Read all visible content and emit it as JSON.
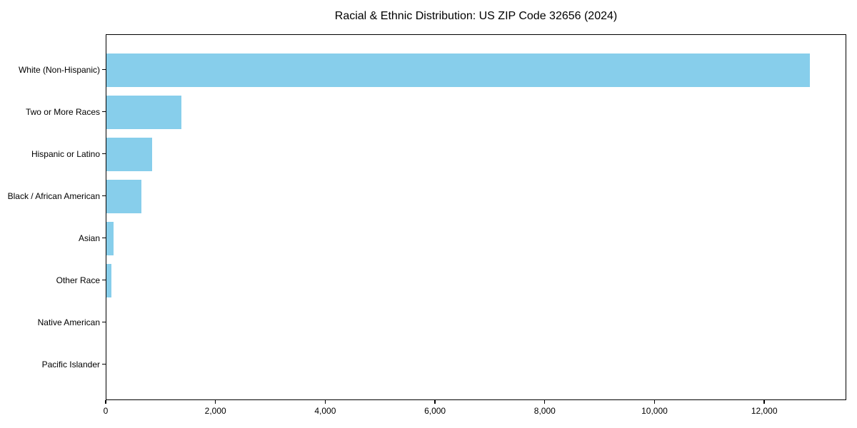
{
  "chart_data": {
    "type": "bar",
    "orientation": "horizontal",
    "title": "Racial & Ethnic Distribution: US ZIP Code 32656 (2024)",
    "categories": [
      "White (Non-Hispanic)",
      "Two or More Races",
      "Hispanic or Latino",
      "Black / African American",
      "Asian",
      "Other Race",
      "Native American",
      "Pacific Islander"
    ],
    "values": [
      12814,
      1360,
      828,
      633,
      134,
      94,
      0,
      0
    ],
    "xlabel": "",
    "ylabel": "",
    "xlim": [
      0,
      13455
    ],
    "x_ticks": [
      0,
      2000,
      4000,
      6000,
      8000,
      10000,
      12000
    ],
    "x_tick_labels": [
      "0",
      "2,000",
      "4,000",
      "6,000",
      "8,000",
      "10,000",
      "12,000"
    ],
    "bar_color": "#87CEEB",
    "axis_color": "#000000",
    "text_color": "#000000",
    "background_color": "#ffffff",
    "grid": false,
    "legend": null
  }
}
